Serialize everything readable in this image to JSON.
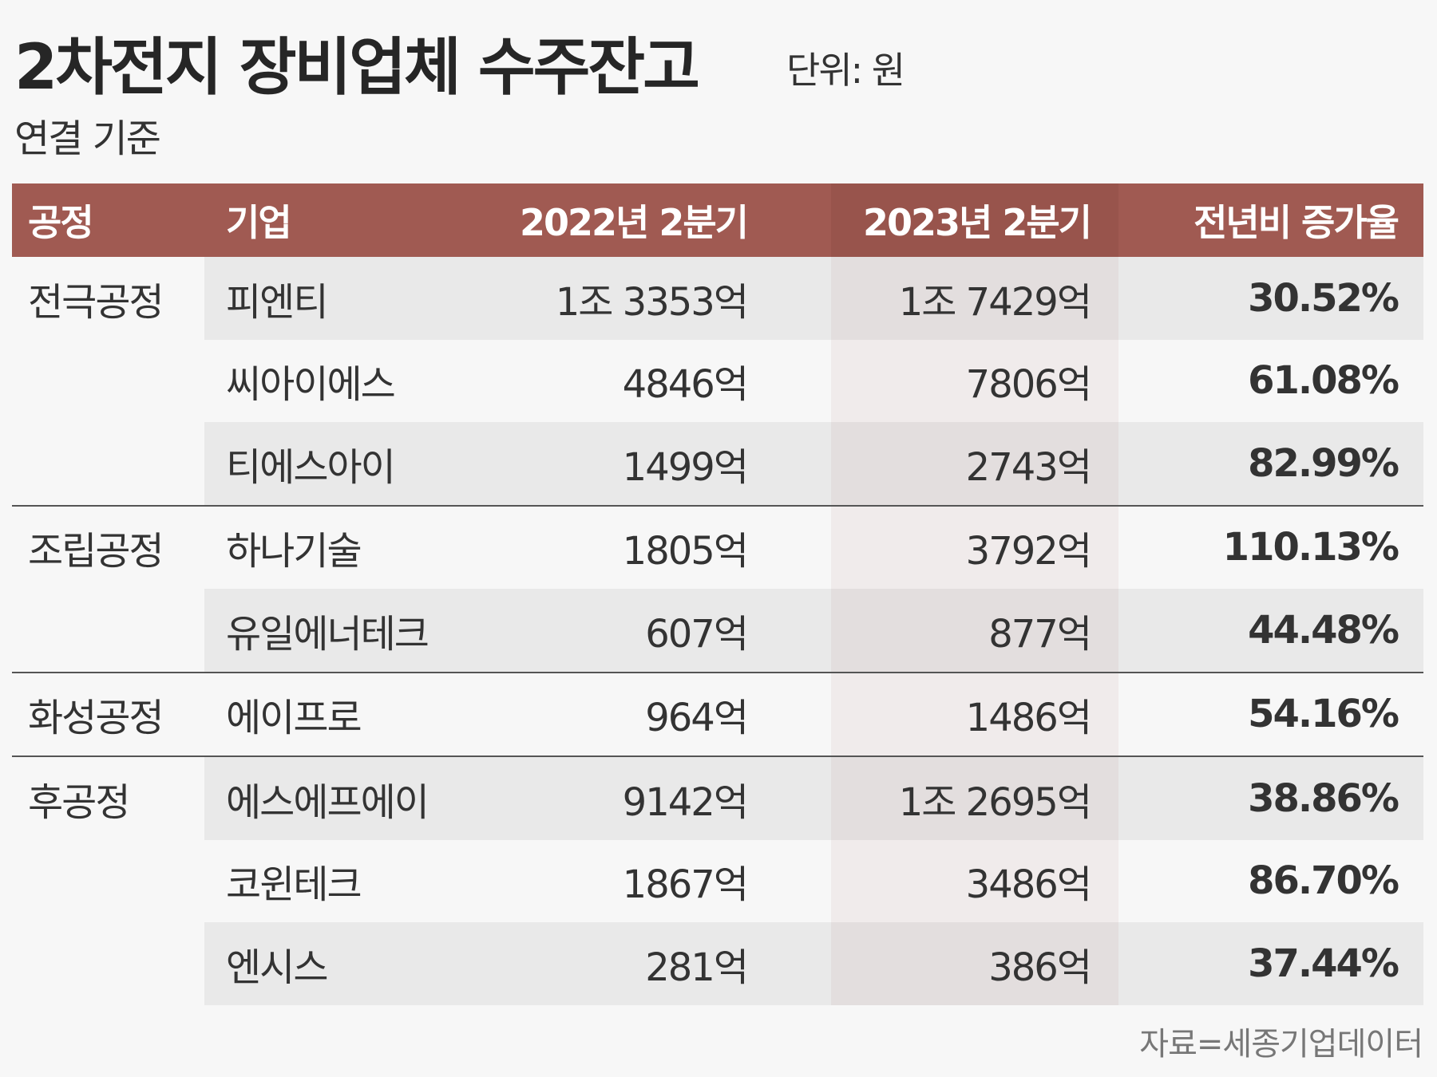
{
  "title": "2차전지 장비업체 수주잔고",
  "unit": "단위: 원",
  "subtitle": "연결 기준",
  "colors": {
    "header_bg": "#a05a52",
    "stripe": "#e9e9e9",
    "background": "#f7f7f7"
  },
  "columns": [
    "공정",
    "기업",
    "2022년 2분기",
    "2023년 2분기",
    "전년비 증가율"
  ],
  "rows": [
    {
      "process": "전극공정",
      "company": "피엔티",
      "q2_2022": "1조 3353억",
      "q2_2023": "1조 7429억",
      "growth": "30.52%"
    },
    {
      "process": "",
      "company": "씨아이에스",
      "q2_2022": "4846억",
      "q2_2023": "7806억",
      "growth": "61.08%"
    },
    {
      "process": "",
      "company": "티에스아이",
      "q2_2022": "1499억",
      "q2_2023": "2743억",
      "growth": "82.99%"
    },
    {
      "process": "조립공정",
      "company": "하나기술",
      "q2_2022": "1805억",
      "q2_2023": "3792억",
      "growth": "110.13%"
    },
    {
      "process": "",
      "company": "유일에너테크",
      "q2_2022": "607억",
      "q2_2023": "877억",
      "growth": "44.48%"
    },
    {
      "process": "화성공정",
      "company": "에이프로",
      "q2_2022": "964억",
      "q2_2023": "1486억",
      "growth": "54.16%"
    },
    {
      "process": "후공정",
      "company": "에스에프에이",
      "q2_2022": "9142억",
      "q2_2023": "1조 2695억",
      "growth": "38.86%"
    },
    {
      "process": "",
      "company": "코윈테크",
      "q2_2022": "1867억",
      "q2_2023": "3486억",
      "growth": "86.70%"
    },
    {
      "process": "",
      "company": "엔시스",
      "q2_2022": "281억",
      "q2_2023": "386억",
      "growth": "37.44%"
    }
  ],
  "source": "자료=세종기업데이터"
}
